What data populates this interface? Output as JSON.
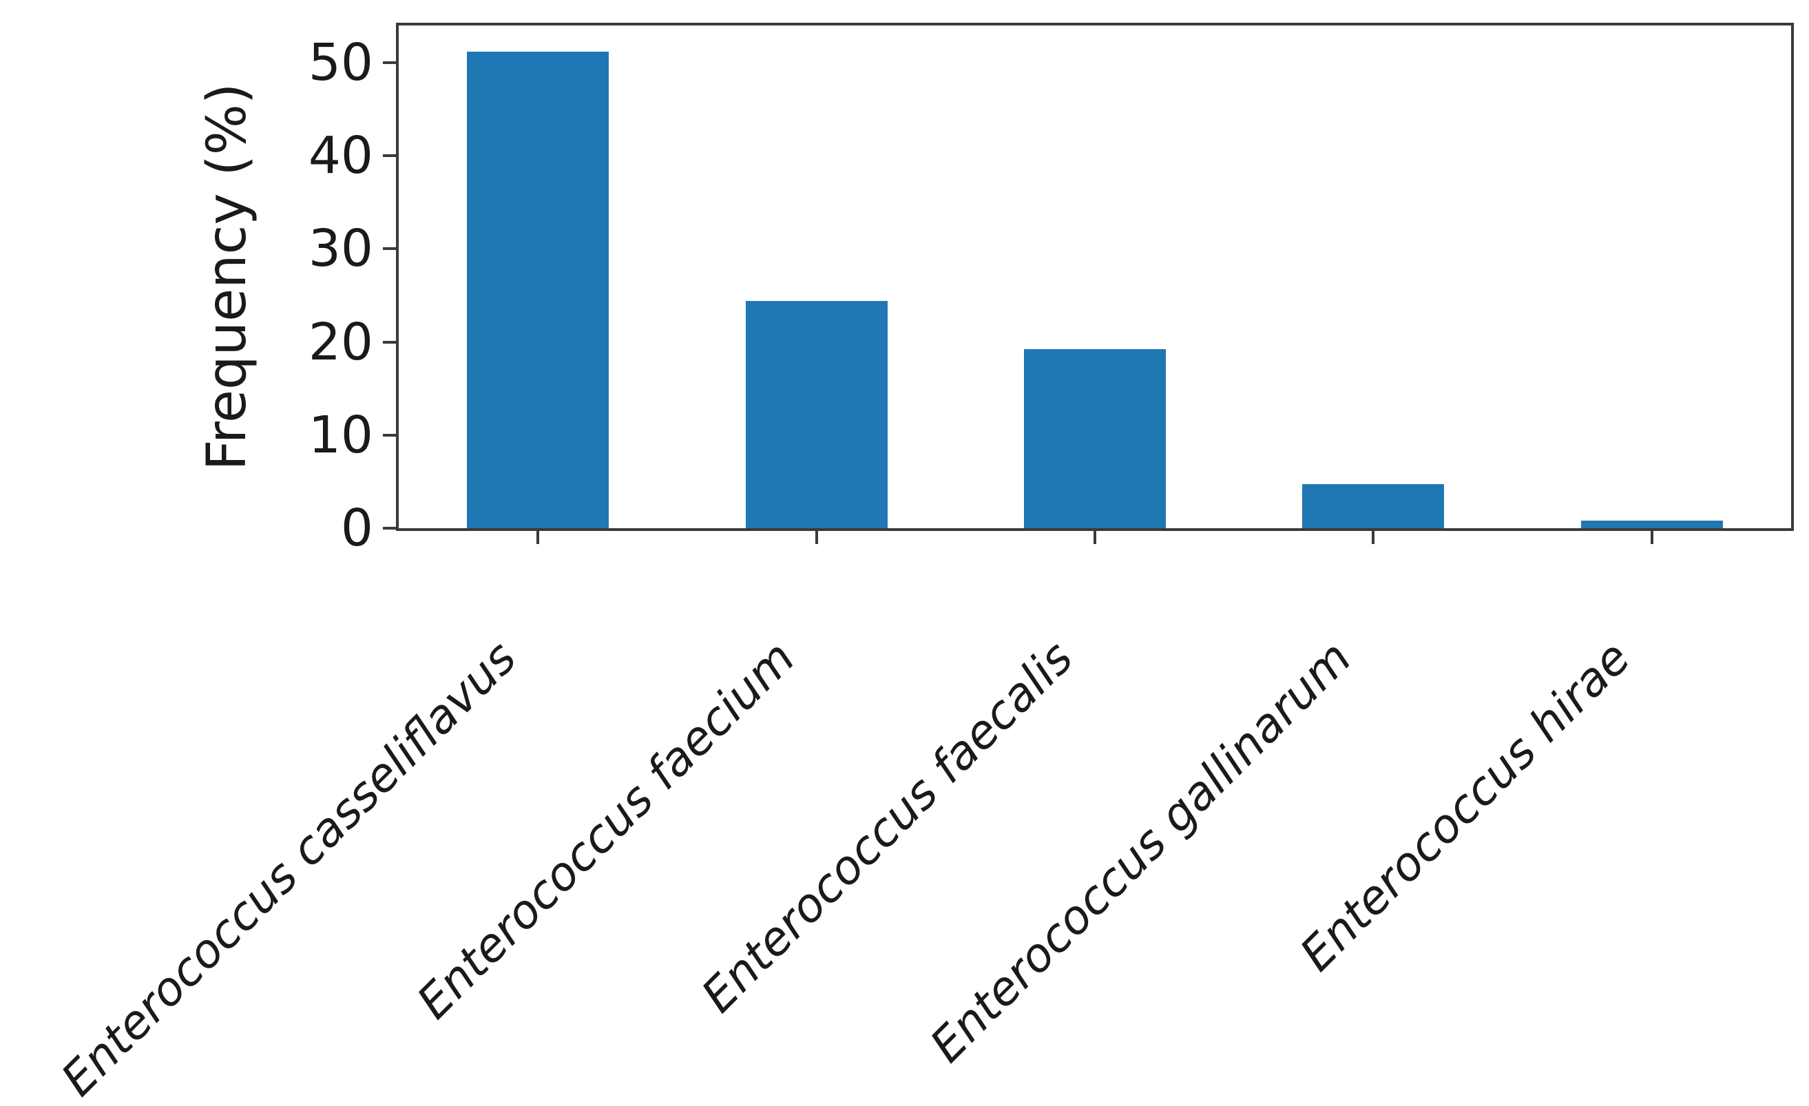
{
  "chart_data": {
    "type": "bar",
    "title": "",
    "xlabel": "",
    "ylabel": "Frequency (%)",
    "categories": [
      "Enterococcus casseliflavus",
      "Enterococcus faecium",
      "Enterococcus faecalis",
      "Enterococcus gallinarum",
      "Enterococcus hirae"
    ],
    "values": [
      51.2,
      24.4,
      19.2,
      4.7,
      0.8
    ],
    "yticks": [
      0,
      10,
      20,
      30,
      40,
      50
    ],
    "ylim": [
      0,
      54
    ],
    "bar_color": "#1f77b4",
    "axis_color": "#3a3a3a",
    "text_color": "#1a1a1a",
    "grid": false,
    "legend": false,
    "xtick_label_style": "italic, rotated 45deg",
    "background": "#ffffff"
  }
}
